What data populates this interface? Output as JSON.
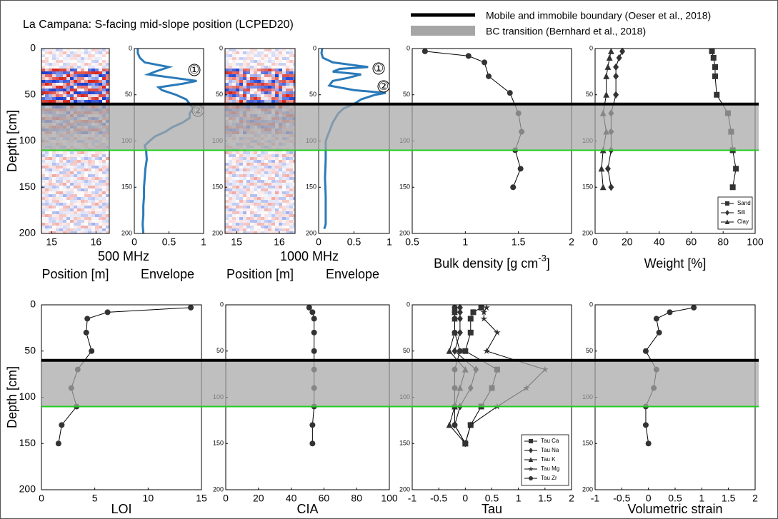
{
  "title": "La Campana: S-facing mid-slope position (LCPED20)",
  "legend": [
    {
      "label": "Mobile and immobile boundary (Oeser et al., 2018)",
      "color": "#000000",
      "style": "line"
    },
    {
      "label": "BC transition  (Bernhard et al., 2018)",
      "color": "#a6a6a6",
      "style": "band"
    }
  ],
  "boundary_depth": 60,
  "transition_depth": [
    60,
    110
  ],
  "transition_edge_color": "#22cc22",
  "chart_data": [
    {
      "type": "radargram",
      "group_label": "500 MHz",
      "xlabel": "Position [m]",
      "ylabel": "Depth [cm]",
      "xlim": [
        14.77,
        16.3
      ],
      "xticks": [
        15,
        16
      ],
      "ylim": [
        0,
        200
      ],
      "yticks": [
        0,
        50,
        100,
        150,
        200
      ],
      "y_reversed": true
    },
    {
      "type": "line",
      "xlabel": "Envelope",
      "xlim": [
        0,
        1
      ],
      "xticks": [
        0,
        0.5,
        1
      ],
      "ylim": [
        0,
        200
      ],
      "yticks": [
        0,
        50,
        100,
        150,
        200
      ],
      "y_reversed": true,
      "color": "#2a7ab9",
      "annotations": [
        "①",
        "②"
      ],
      "depth": [
        0,
        5,
        10,
        15,
        20,
        25,
        28,
        32,
        35,
        38,
        42,
        45,
        50,
        55,
        60,
        65,
        70,
        75,
        80,
        85,
        90,
        95,
        100,
        105,
        110,
        120,
        130,
        140,
        150,
        160,
        170,
        180,
        190,
        200
      ],
      "values": [
        0.05,
        0.05,
        0.08,
        0.15,
        0.5,
        0.3,
        0.2,
        0.6,
        0.9,
        0.7,
        0.35,
        0.4,
        0.6,
        0.75,
        0.8,
        0.85,
        0.8,
        0.8,
        0.7,
        0.55,
        0.45,
        0.3,
        0.22,
        0.15,
        0.17,
        0.18,
        0.16,
        0.15,
        0.14,
        0.14,
        0.13,
        0.13,
        0.12,
        0.13
      ]
    },
    {
      "type": "radargram",
      "group_label": "1000 MHz",
      "xlabel": "Position [m]",
      "xlim": [
        14.73,
        16.37
      ],
      "xticks": [
        15,
        16
      ],
      "ylim": [
        0,
        200
      ],
      "yticks": [
        0,
        50,
        100,
        150,
        200
      ],
      "y_reversed": true
    },
    {
      "type": "line",
      "xlabel": "Envelope",
      "xlim": [
        0,
        1
      ],
      "xticks": [
        0,
        0.5,
        1
      ],
      "ylim": [
        0,
        200
      ],
      "yticks": [
        0,
        50,
        100,
        150,
        200
      ],
      "y_reversed": true,
      "color": "#2a7ab9",
      "annotations": [
        "①",
        "②"
      ],
      "depth": [
        0,
        5,
        10,
        15,
        18,
        20,
        22,
        25,
        28,
        32,
        35,
        40,
        45,
        48,
        50,
        55,
        60,
        65,
        70,
        80,
        90,
        100,
        110,
        120,
        140,
        160,
        180,
        190,
        195
      ],
      "values": [
        0.05,
        0.04,
        0.06,
        0.2,
        0.5,
        0.7,
        0.3,
        0.2,
        0.6,
        0.4,
        0.2,
        0.15,
        0.5,
        0.95,
        0.8,
        0.6,
        0.5,
        0.35,
        0.28,
        0.2,
        0.15,
        0.1,
        0.1,
        0.1,
        0.09,
        0.1,
        0.1,
        0.1,
        0.08
      ]
    },
    {
      "type": "profile",
      "xlabel": "Bulk density [g cm",
      "xlabel_sup": "-3",
      "xlabel_end": "]",
      "xlim": [
        0.5,
        2
      ],
      "xticks": [
        0.5,
        1,
        1.5,
        2
      ],
      "ylim": [
        0,
        200
      ],
      "yticks": [
        0,
        50,
        100,
        150,
        200
      ],
      "y_reversed": true,
      "depth": [
        3,
        8,
        15,
        30,
        48,
        70,
        90,
        110,
        130,
        150
      ],
      "series": [
        {
          "color": "#333333",
          "marker": "circle",
          "values": [
            0.62,
            1.03,
            1.18,
            1.22,
            1.42,
            1.5,
            1.53,
            1.47,
            1.52,
            1.45
          ]
        }
      ]
    },
    {
      "type": "profile",
      "xlabel": "Weight [%]",
      "legend_position": "lower right",
      "xlim": [
        0,
        100
      ],
      "xticks": [
        0,
        20,
        40,
        60,
        80,
        100
      ],
      "ylim": [
        0,
        200
      ],
      "yticks": [
        0,
        50,
        100,
        150,
        200
      ],
      "y_reversed": true,
      "depth": [
        3,
        10,
        20,
        30,
        50,
        70,
        90,
        110,
        130,
        150
      ],
      "series": [
        {
          "name": "Sand",
          "color": "#333333",
          "marker": "square",
          "values": [
            73,
            74,
            75,
            75,
            76,
            83,
            85,
            86,
            88,
            86
          ]
        },
        {
          "name": "Silt",
          "color": "#333333",
          "marker": "diamond",
          "values": [
            17,
            15,
            13,
            13,
            13,
            10,
            10,
            10,
            8,
            10
          ]
        },
        {
          "name": "Clay",
          "color": "#333333",
          "marker": "triangle",
          "values": [
            10,
            9,
            8,
            7,
            7,
            5,
            7,
            5,
            4,
            5
          ]
        }
      ]
    },
    {
      "type": "profile",
      "xlabel": "LOI",
      "ylabel": "Depth [cm]",
      "xlim": [
        0,
        15
      ],
      "xticks": [
        0,
        5,
        10,
        15
      ],
      "ylim": [
        0,
        200
      ],
      "yticks": [
        0,
        50,
        100,
        150,
        200
      ],
      "y_reversed": true,
      "depth": [
        3,
        8,
        15,
        30,
        50,
        70,
        90,
        110,
        130,
        150
      ],
      "series": [
        {
          "color": "#333333",
          "marker": "circle",
          "values": [
            14,
            6.2,
            4.3,
            4.2,
            4.7,
            3.4,
            2.8,
            3.3,
            1.9,
            1.6
          ]
        }
      ]
    },
    {
      "type": "profile",
      "xlabel": "CIA",
      "xlim": [
        0,
        100
      ],
      "xticks": [
        0,
        20,
        40,
        60,
        80,
        100
      ],
      "ylim": [
        0,
        200
      ],
      "yticks": [
        0,
        50,
        100,
        150,
        200
      ],
      "y_reversed": true,
      "depth": [
        3,
        8,
        15,
        30,
        50,
        70,
        90,
        110,
        130,
        150
      ],
      "series": [
        {
          "color": "#333333",
          "marker": "circle",
          "values": [
            51,
            53,
            54,
            54,
            54,
            54,
            54,
            54,
            53,
            53
          ]
        }
      ]
    },
    {
      "type": "profile",
      "xlabel": "Tau",
      "legend_position": "lower right",
      "xlim": [
        -1,
        2
      ],
      "xticks": [
        -1,
        -0.5,
        0,
        0.5,
        1,
        1.5,
        2
      ],
      "ylim": [
        0,
        200
      ],
      "yticks": [
        0,
        50,
        100,
        150,
        200
      ],
      "y_reversed": true,
      "depth": [
        3,
        8,
        15,
        30,
        50,
        70,
        90,
        110,
        130,
        150
      ],
      "series": [
        {
          "name": "Tau Ca",
          "color": "#333333",
          "marker": "square",
          "values": [
            0.3,
            0.15,
            0.1,
            0.1,
            0.0,
            0.6,
            0.5,
            0.3,
            0.1,
            0.0
          ]
        },
        {
          "name": "Tau Na",
          "color": "#333333",
          "marker": "diamond",
          "values": [
            -0.1,
            -0.1,
            -0.1,
            -0.1,
            -0.2,
            0.2,
            0.1,
            -0.1,
            -0.2,
            0.0
          ]
        },
        {
          "name": "Tau K",
          "color": "#333333",
          "marker": "triangle",
          "values": [
            -0.2,
            -0.2,
            -0.2,
            -0.2,
            -0.3,
            0.0,
            -0.1,
            -0.2,
            -0.3,
            0.0
          ]
        },
        {
          "name": "Tau Mg",
          "color": "#333333",
          "marker": "star",
          "values": [
            0.4,
            0.35,
            0.35,
            0.6,
            0.4,
            1.5,
            1.15,
            0.6,
            0.1,
            0.0
          ]
        },
        {
          "name": "Tau Zr",
          "color": "#333333",
          "marker": "circle",
          "values": [
            -0.2,
            -0.2,
            -0.2,
            -0.2,
            -0.1,
            -0.2,
            -0.2,
            -0.2,
            -0.2,
            0.0
          ]
        }
      ]
    },
    {
      "type": "profile",
      "xlabel": "Volumetric strain",
      "xlim": [
        -1,
        2
      ],
      "xticks": [
        -1,
        -0.5,
        0,
        0.5,
        1,
        1.5,
        2
      ],
      "ylim": [
        0,
        200
      ],
      "yticks": [
        0,
        50,
        100,
        150,
        200
      ],
      "y_reversed": true,
      "depth": [
        3,
        8,
        15,
        30,
        50,
        70,
        90,
        110,
        130,
        150
      ],
      "series": [
        {
          "color": "#333333",
          "marker": "circle",
          "values": [
            0.85,
            0.4,
            0.15,
            0.2,
            -0.05,
            0.15,
            0.1,
            -0.05,
            -0.05,
            0.0
          ]
        }
      ]
    }
  ]
}
